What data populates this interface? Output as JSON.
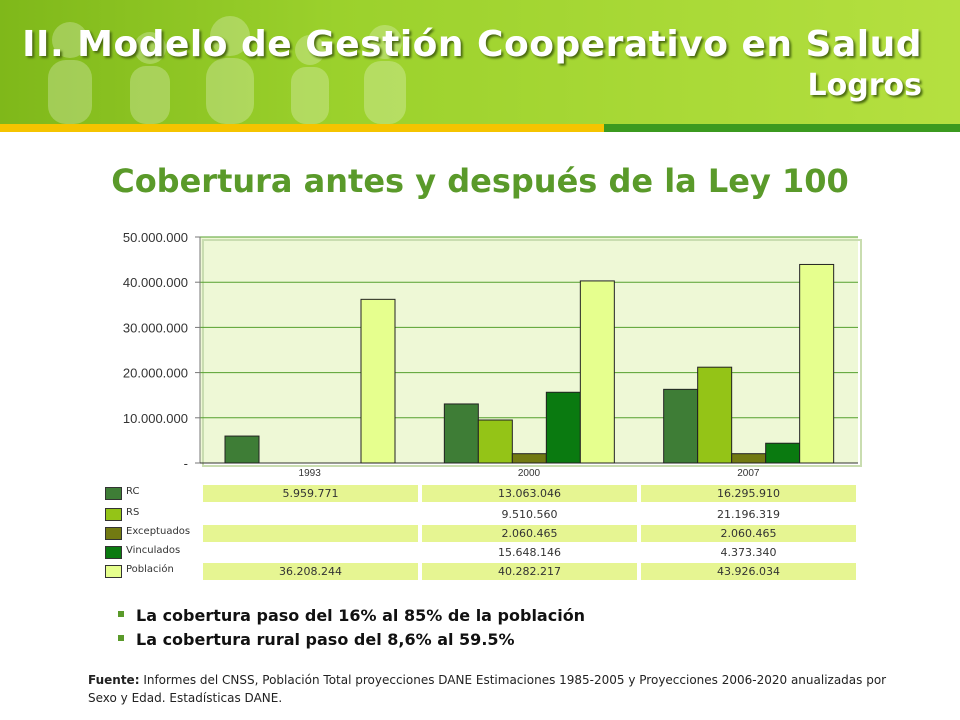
{
  "header": {
    "title": "II. Modelo de Gestión Cooperativo en Salud",
    "subtitle": "Logros"
  },
  "chart_data": {
    "type": "bar",
    "title": "Cobertura antes y después de la Ley 100",
    "categories": [
      "1993",
      "2000",
      "2007"
    ],
    "ylim": [
      0,
      50000000
    ],
    "yticks": [
      0,
      10000000,
      20000000,
      30000000,
      40000000,
      50000000
    ],
    "ytick_labels": [
      "-",
      "10.000.000",
      "20.000.000",
      "30.000.000",
      "40.000.000",
      "50.000.000"
    ],
    "grid": true,
    "series": [
      {
        "name": "RC",
        "color": "#3e7d36",
        "values": [
          5959771,
          13063046,
          16295910
        ],
        "labels": [
          "5.959.771",
          "13.063.046",
          "16.295.910"
        ]
      },
      {
        "name": "RS",
        "color": "#94c417",
        "values": [
          null,
          9510560,
          21196319
        ],
        "labels": [
          "",
          "9.510.560",
          "21.196.319"
        ]
      },
      {
        "name": "Exceptuados",
        "color": "#727a12",
        "values": [
          null,
          2060465,
          2060465
        ],
        "labels": [
          "",
          "2.060.465",
          "2.060.465"
        ]
      },
      {
        "name": "Vinculados",
        "color": "#0a7a10",
        "values": [
          null,
          15648146,
          4373340
        ],
        "labels": [
          "",
          "15.648.146",
          "4.373.340"
        ]
      },
      {
        "name": "Población",
        "color": "#e6ff8e",
        "values": [
          36208244,
          40282217,
          43926034
        ],
        "labels": [
          "36.208.244",
          "40.282.217",
          "43.926.034"
        ]
      }
    ]
  },
  "bullets": [
    "La cobertura paso del 16% al 85% de la población",
    "La cobertura rural paso del 8,6% al 59.5%"
  ],
  "source": {
    "label": "Fuente:",
    "text": " Informes del CNSS, Población Total proyecciones DANE Estimaciones 1985-2005 y Proyecciones 2006-2020 anualizadas por Sexo y Edad. Estadísticas DANE."
  }
}
